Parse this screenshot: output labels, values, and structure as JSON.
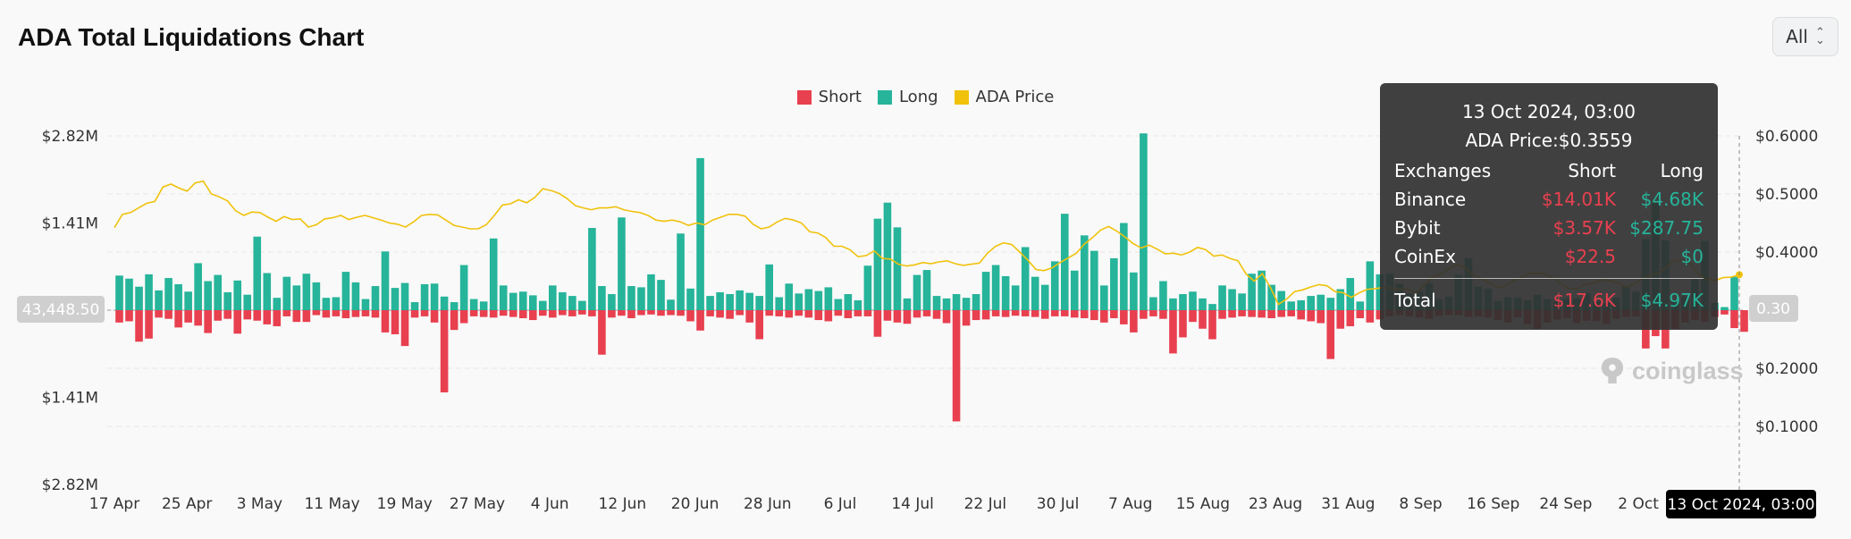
{
  "page": {
    "title": "ADA Total Liquidations Chart",
    "range_select": {
      "value": "All"
    }
  },
  "legend": [
    {
      "label": "Short",
      "color": "#e8404f"
    },
    {
      "label": "Long",
      "color": "#26b49a"
    },
    {
      "label": "ADA Price",
      "color": "#f0c20c"
    }
  ],
  "watermark": "coinglass",
  "tooltip": {
    "date": "13 Oct 2024, 03:00",
    "price_label": "ADA Price:",
    "price": "$0.3559",
    "headers": [
      "Exchanges",
      "Short",
      "Long"
    ],
    "rows": [
      {
        "exchange": "Binance",
        "short": "$14.01K",
        "long": "$4.68K"
      },
      {
        "exchange": "Bybit",
        "short": "$3.57K",
        "long": "$287.75"
      },
      {
        "exchange": "CoinEx",
        "short": "$22.5",
        "long": "$0"
      }
    ],
    "total": {
      "label": "Total",
      "short": "$17.6K",
      "long": "$4.97K"
    }
  },
  "crosshair": {
    "left_label": "43,448.50",
    "right_label": "0.30",
    "x_label": "13 Oct 2024, 03:00"
  },
  "chart_data": {
    "type": "bar",
    "title": "ADA Total Liquidations Chart",
    "left_axis": {
      "ticks": [
        {
          "label": "$2.82M",
          "value": 2820000
        },
        {
          "label": "$1.41M",
          "value": 1410000
        },
        {
          "label": "$1.41M",
          "value": -1410000
        },
        {
          "label": "$2.82M",
          "value": -2820000
        }
      ],
      "range": [
        -2820000,
        2820000
      ]
    },
    "right_axis": {
      "ticks": [
        {
          "label": "$0.6000",
          "value": 0.6
        },
        {
          "label": "$0.5000",
          "value": 0.5
        },
        {
          "label": "$0.4000",
          "value": 0.4
        },
        {
          "label": "$0.2000",
          "value": 0.2
        },
        {
          "label": "$0.1000",
          "value": 0.1
        }
      ],
      "range": [
        0.0,
        0.6
      ]
    },
    "x_ticks": [
      "17 Apr",
      "25 Apr",
      "3 May",
      "11 May",
      "19 May",
      "27 May",
      "4 Jun",
      "12 Jun",
      "20 Jun",
      "28 Jun",
      "6 Jul",
      "14 Jul",
      "22 Jul",
      "30 Jul",
      "7 Aug",
      "15 Aug",
      "23 Aug",
      "31 Aug",
      "8 Sep",
      "16 Sep",
      "24 Sep",
      "2 Oct"
    ],
    "start_date": "2024-04-17",
    "series": [
      {
        "name": "Long",
        "color": "#26b49a",
        "values": [
          560,
          510,
          380,
          580,
          320,
          520,
          420,
          300,
          760,
          470,
          570,
          290,
          480,
          250,
          1190,
          600,
          200,
          540,
          400,
          590,
          450,
          200,
          210,
          620,
          450,
          180,
          390,
          950,
          360,
          440,
          130,
          420,
          430,
          220,
          130,
          730,
          180,
          140,
          1160,
          400,
          280,
          300,
          240,
          150,
          400,
          290,
          230,
          150,
          1330,
          390,
          260,
          1500,
          390,
          370,
          580,
          490,
          170,
          1240,
          350,
          2460,
          230,
          290,
          260,
          320,
          280,
          230,
          740,
          210,
          430,
          270,
          340,
          310,
          370,
          180,
          260,
          160,
          720,
          1480,
          1740,
          1340,
          190,
          570,
          650,
          230,
          190,
          260,
          200,
          260,
          620,
          730,
          550,
          400,
          1020,
          540,
          410,
          790,
          1560,
          640,
          1210,
          960,
          400,
          840,
          1410,
          610,
          2860,
          210,
          470,
          190,
          260,
          300,
          190,
          100,
          400,
          340,
          270,
          590,
          640,
          410,
          310,
          140,
          160,
          230,
          250,
          200,
          340,
          520,
          140,
          790,
          580,
          590,
          430,
          270,
          310,
          440,
          180,
          220,
          570,
          840,
          380,
          350,
          150,
          210,
          200,
          160,
          250,
          180,
          140,
          180,
          190,
          280,
          150,
          120,
          200,
          390,
          300,
          1150,
          1740,
          1130,
          160,
          220,
          500,
          1120,
          120,
          50,
          540
        ]
      },
      {
        "name": "Short",
        "color": "#e8404f",
        "values": [
          200,
          180,
          510,
          460,
          120,
          140,
          280,
          200,
          250,
          370,
          170,
          140,
          380,
          150,
          170,
          230,
          260,
          100,
          190,
          190,
          80,
          120,
          100,
          130,
          110,
          100,
          120,
          360,
          390,
          580,
          120,
          100,
          200,
          1330,
          320,
          210,
          100,
          110,
          120,
          90,
          110,
          130,
          160,
          90,
          120,
          80,
          100,
          70,
          100,
          720,
          120,
          90,
          130,
          80,
          70,
          90,
          80,
          90,
          180,
          330,
          100,
          120,
          140,
          80,
          200,
          470,
          90,
          100,
          120,
          90,
          120,
          160,
          180,
          90,
          130,
          100,
          100,
          430,
          170,
          200,
          220,
          120,
          100,
          140,
          210,
          1800,
          250,
          160,
          150,
          100,
          110,
          90,
          100,
          110,
          140,
          100,
          100,
          120,
          130,
          160,
          200,
          130,
          230,
          360,
          140,
          100,
          140,
          700,
          440,
          190,
          300,
          470,
          140,
          120,
          100,
          110,
          120,
          130,
          110,
          100,
          150,
          180,
          210,
          790,
          300,
          260,
          130,
          200,
          150,
          100,
          80,
          100,
          120,
          140,
          90,
          80,
          80,
          110,
          100,
          120,
          160,
          200,
          120,
          230,
          300,
          200,
          150,
          130,
          210,
          170,
          180,
          220,
          140,
          110,
          100,
          620,
          420,
          620,
          300,
          200,
          160,
          190,
          110,
          70,
          290,
          350
        ]
      },
      {
        "name": "ADA Price",
        "color": "#f0c20c",
        "values": [
          0.442,
          0.465,
          0.468,
          0.476,
          0.484,
          0.487,
          0.512,
          0.517,
          0.51,
          0.505,
          0.519,
          0.522,
          0.5,
          0.495,
          0.488,
          0.471,
          0.463,
          0.469,
          0.468,
          0.46,
          0.453,
          0.461,
          0.456,
          0.457,
          0.443,
          0.447,
          0.457,
          0.459,
          0.463,
          0.456,
          0.46,
          0.463,
          0.459,
          0.455,
          0.45,
          0.448,
          0.443,
          0.452,
          0.463,
          0.465,
          0.464,
          0.455,
          0.446,
          0.443,
          0.44,
          0.44,
          0.447,
          0.463,
          0.481,
          0.483,
          0.49,
          0.485,
          0.494,
          0.509,
          0.506,
          0.501,
          0.492,
          0.48,
          0.476,
          0.473,
          0.476,
          0.476,
          0.478,
          0.473,
          0.47,
          0.468,
          0.463,
          0.455,
          0.453,
          0.455,
          0.452,
          0.446,
          0.45,
          0.447,
          0.455,
          0.46,
          0.465,
          0.465,
          0.462,
          0.448,
          0.44,
          0.443,
          0.452,
          0.458,
          0.455,
          0.45,
          0.435,
          0.433,
          0.425,
          0.41,
          0.41,
          0.404,
          0.392,
          0.394,
          0.402,
          0.389,
          0.388,
          0.379,
          0.376,
          0.378,
          0.382,
          0.38,
          0.383,
          0.385,
          0.38,
          0.377,
          0.379,
          0.381,
          0.398,
          0.41,
          0.416,
          0.413,
          0.4,
          0.386,
          0.37,
          0.368,
          0.373,
          0.382,
          0.39,
          0.398,
          0.414,
          0.425,
          0.438,
          0.444,
          0.436,
          0.426,
          0.415,
          0.407,
          0.412,
          0.405,
          0.397,
          0.398,
          0.395,
          0.4,
          0.408,
          0.404,
          0.393,
          0.395,
          0.389,
          0.385,
          0.362,
          0.35,
          0.363,
          0.339,
          0.31,
          0.319,
          0.332,
          0.335,
          0.34,
          0.344,
          0.342,
          0.332,
          0.33,
          0.322,
          0.33,
          0.336,
          0.337,
          0.339,
          0.338,
          0.336,
          0.336,
          0.328,
          0.342,
          0.356,
          0.362,
          0.37,
          0.378,
          0.375,
          0.361,
          0.354,
          0.348,
          0.339,
          0.341,
          0.35,
          0.356,
          0.363,
          0.364,
          0.362,
          0.355,
          0.344,
          0.337,
          0.337,
          0.345,
          0.347,
          0.352,
          0.351,
          0.347,
          0.339,
          0.345,
          0.355,
          0.36,
          0.364,
          0.374,
          0.386,
          0.385,
          0.38,
          0.361,
          0.353,
          0.351,
          0.356,
          0.357,
          0.361
        ]
      }
    ],
    "grid": true,
    "legend": "top-center"
  }
}
